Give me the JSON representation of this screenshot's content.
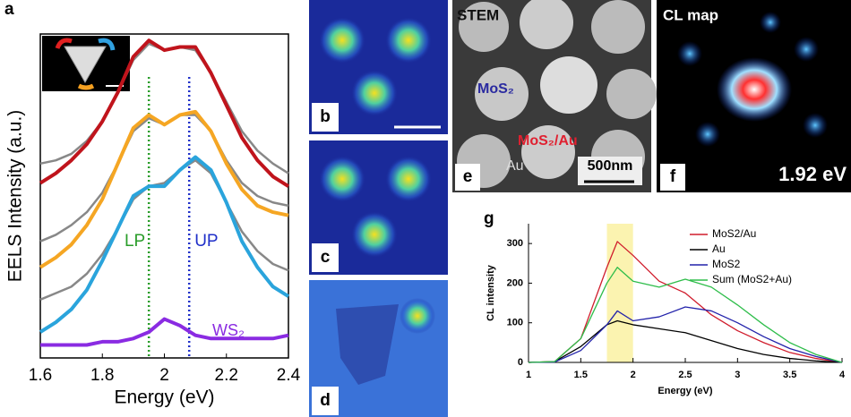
{
  "chart_data": [
    {
      "type": "line",
      "xlabel": "Energy (eV)",
      "ylabel": "EELS Intensity (a.u.)",
      "x": [
        1.6,
        1.65,
        1.7,
        1.75,
        1.8,
        1.85,
        1.9,
        1.95,
        2.0,
        2.05,
        2.1,
        2.15,
        2.2,
        2.25,
        2.3,
        2.35,
        2.4
      ],
      "xlim": [
        1.6,
        2.4
      ],
      "xticks": [
        1.6,
        1.8,
        2,
        2.2,
        2.4
      ],
      "ylim": [
        0,
        1
      ],
      "series": [
        {
          "color": "#888888",
          "values": [
            0.6,
            0.61,
            0.63,
            0.67,
            0.73,
            0.82,
            0.92,
            0.97,
            0.95,
            0.96,
            0.95,
            0.88,
            0.79,
            0.7,
            0.64,
            0.6,
            0.57
          ]
        },
        {
          "color": "#888888",
          "values": [
            0.36,
            0.38,
            0.41,
            0.45,
            0.51,
            0.6,
            0.7,
            0.74,
            0.72,
            0.75,
            0.75,
            0.7,
            0.61,
            0.54,
            0.5,
            0.48,
            0.47
          ]
        },
        {
          "color": "#888888",
          "values": [
            0.18,
            0.2,
            0.22,
            0.26,
            0.32,
            0.4,
            0.49,
            0.53,
            0.54,
            0.58,
            0.61,
            0.57,
            0.48,
            0.39,
            0.33,
            0.29,
            0.27
          ]
        },
        {
          "color": "#c0141c",
          "values": [
            0.54,
            0.57,
            0.61,
            0.66,
            0.73,
            0.82,
            0.93,
            0.98,
            0.95,
            0.96,
            0.96,
            0.88,
            0.78,
            0.68,
            0.61,
            0.56,
            0.53
          ]
        },
        {
          "color": "#f5a623",
          "values": [
            0.28,
            0.31,
            0.35,
            0.41,
            0.49,
            0.6,
            0.71,
            0.75,
            0.72,
            0.75,
            0.76,
            0.7,
            0.6,
            0.52,
            0.47,
            0.45,
            0.44
          ]
        },
        {
          "color": "#2aa4dc",
          "values": [
            0.08,
            0.11,
            0.15,
            0.21,
            0.3,
            0.4,
            0.5,
            0.53,
            0.53,
            0.58,
            0.62,
            0.58,
            0.48,
            0.36,
            0.28,
            0.22,
            0.19
          ]
        },
        {
          "color": "#8a2be2",
          "values": [
            0.04,
            0.04,
            0.04,
            0.04,
            0.05,
            0.05,
            0.06,
            0.08,
            0.12,
            0.1,
            0.07,
            0.06,
            0.06,
            0.06,
            0.06,
            0.06,
            0.07
          ]
        }
      ],
      "vlines": [
        {
          "value": 1.95,
          "color": "#2a9d2a",
          "label": "LP"
        },
        {
          "value": 2.08,
          "color": "#1f2fc9",
          "label": "UP"
        }
      ],
      "annotation": "WS₂"
    },
    {
      "type": "line",
      "xlabel": "Energy (eV)",
      "ylabel": "CL intensity",
      "x": [
        1,
        1.25,
        1.5,
        1.75,
        1.85,
        2,
        2.25,
        2.5,
        2.75,
        3,
        3.25,
        3.5,
        3.75,
        4
      ],
      "xlim": [
        1,
        4
      ],
      "xticks": [
        1,
        1.5,
        2,
        2.5,
        3,
        3.5,
        4
      ],
      "ylim": [
        0,
        350
      ],
      "yticks": [
        0,
        100,
        200,
        300
      ],
      "highlight": [
        1.75,
        2.0
      ],
      "legend": "upper right",
      "series": [
        {
          "name": "MoS2/Au",
          "color": "#d01c2c",
          "values": [
            0,
            2,
            60,
            240,
            305,
            270,
            205,
            175,
            120,
            80,
            50,
            25,
            10,
            0
          ]
        },
        {
          "name": "Au",
          "color": "#000000",
          "values": [
            0,
            2,
            40,
            95,
            105,
            95,
            85,
            75,
            55,
            35,
            20,
            10,
            4,
            0
          ]
        },
        {
          "name": "MoS2",
          "color": "#2222aa",
          "values": [
            0,
            1,
            30,
            95,
            130,
            105,
            115,
            140,
            130,
            100,
            65,
            35,
            15,
            0
          ]
        },
        {
          "name": "Sum (MoS2+Au)",
          "color": "#2ebd4a",
          "values": [
            0,
            2,
            60,
            200,
            240,
            205,
            190,
            210,
            190,
            145,
            95,
            50,
            20,
            0
          ]
        }
      ]
    }
  ],
  "panel_labels": [
    "a",
    "b",
    "c",
    "d",
    "e",
    "f",
    "g"
  ],
  "images": {
    "e": {
      "title": "STEM",
      "labels": [
        "MoS₂",
        "MoS₂/Au",
        "Au"
      ],
      "scale": "500nm"
    },
    "f": {
      "title": "CL map",
      "energy": "1.92 eV"
    }
  }
}
